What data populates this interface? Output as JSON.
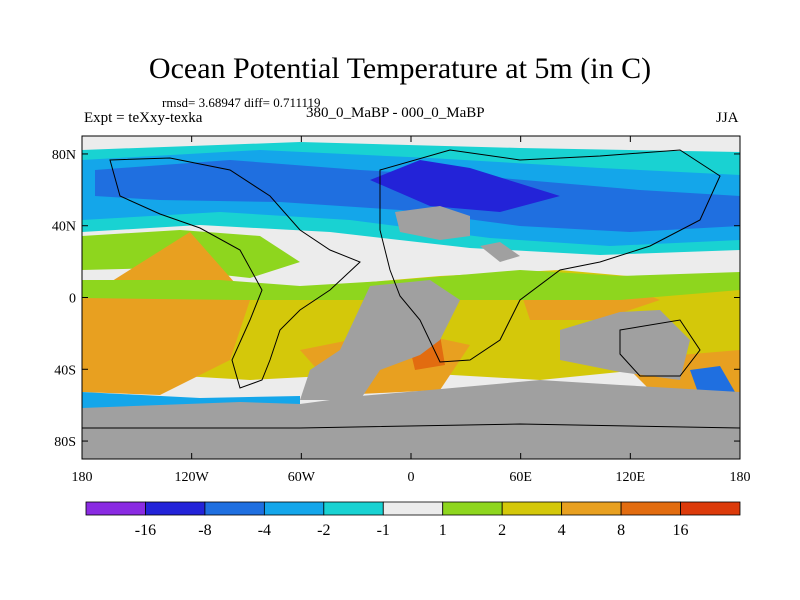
{
  "header": {
    "title": "Ocean Potential Temperature at 5m (in C)",
    "stats": "rmsd= 3.68947 diff= 0.711119",
    "experiment": "Expt = teXxy-texka",
    "difference": "380_0_MaBP - 000_0_MaBP",
    "season": "JJA"
  },
  "axes": {
    "y_labels": [
      "80N",
      "40N",
      "0",
      "40S",
      "80S"
    ],
    "y_values": [
      80,
      40,
      0,
      -40,
      -80
    ],
    "x_labels": [
      "180",
      "120W",
      "60W",
      "0",
      "60E",
      "120E",
      "180"
    ],
    "x_values": [
      -180,
      -120,
      -60,
      0,
      60,
      120,
      180
    ],
    "lon_range": [
      -180,
      180
    ],
    "lat_range": [
      -90,
      90
    ]
  },
  "colorbar": {
    "labels": [
      "-16",
      "-8",
      "-4",
      "-2",
      "-1",
      "1",
      "2",
      "4",
      "8",
      "16"
    ],
    "colors": [
      "#8a2be2",
      "#2323d8",
      "#1f6fe0",
      "#14a6ea",
      "#19d2d2",
      "#ececec",
      "#8ed61e",
      "#d4c80a",
      "#e8a020",
      "#e26c10",
      "#dc3a0a"
    ]
  },
  "map_colors": {
    "land": "#a0a0a0",
    "neutral": "#ececec"
  }
}
